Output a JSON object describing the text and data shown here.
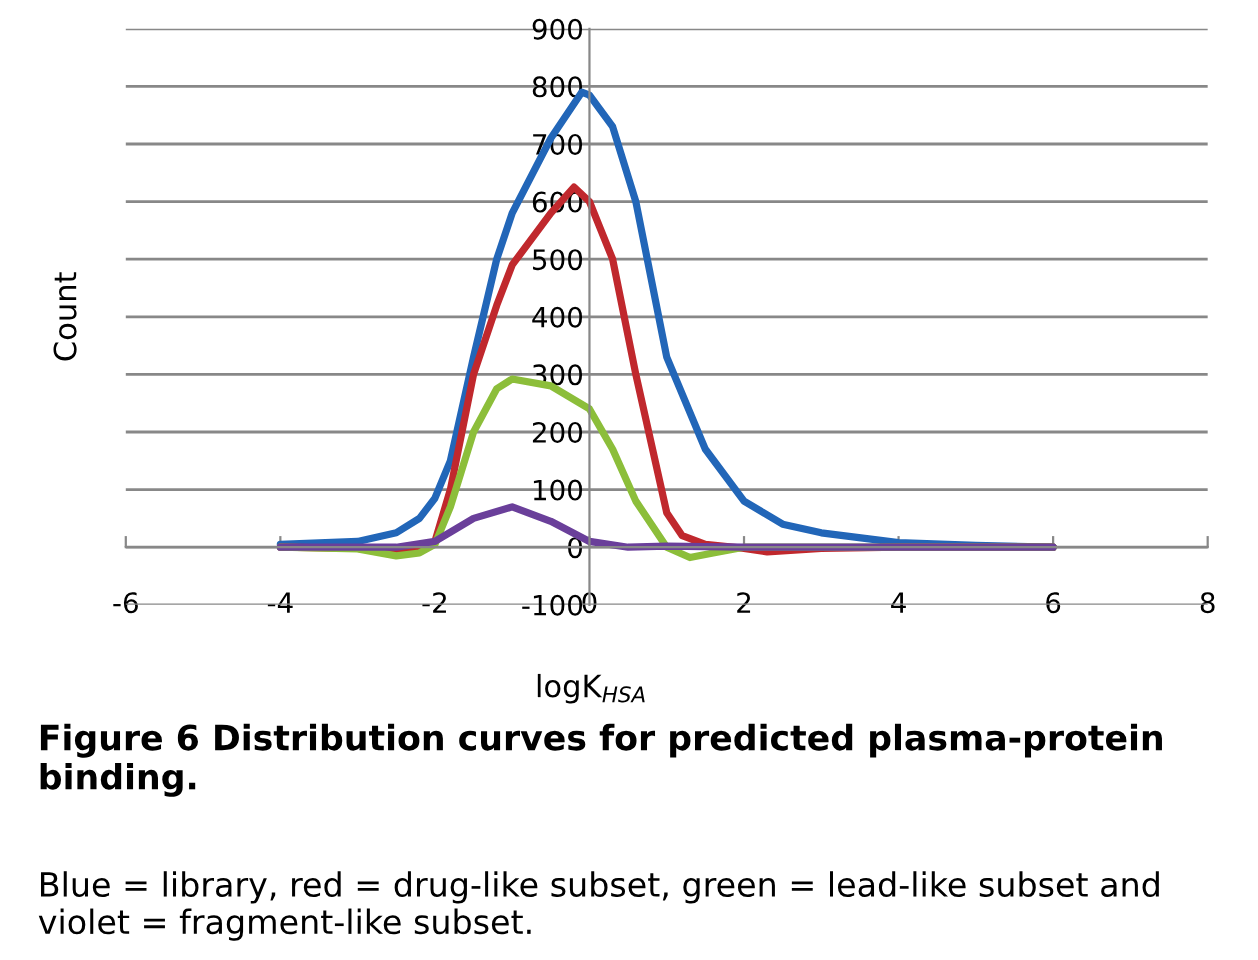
{
  "chart_data": {
    "type": "line",
    "xlabel": "logK$_{HSA}$",
    "ylabel": "Count",
    "annotations": [
      "Figure 6 Distribution curves for predicted plasma-protein binding.",
      "Blue = library, red = drug-like subset, green = lead-like subset and violet = fragment-like subset."
    ],
    "xlim": [
      -6,
      8
    ],
    "xticks": [
      -6,
      -4,
      -2,
      0,
      2,
      4,
      6,
      8
    ],
    "ylim": [
      -100,
      900
    ],
    "yticks": [
      -100,
      0,
      100,
      200,
      300,
      400,
      500,
      600,
      700,
      800,
      900
    ],
    "grid": "y",
    "marker": "none",
    "line_style": "solid",
    "series": [
      {
        "color": "#2266b8",
        "x": [
          -4,
          -3,
          -2.5,
          -2.2,
          -2,
          -1.8,
          -1.5,
          -1.2,
          -1,
          -0.5,
          -0.1,
          0,
          0.3,
          0.6,
          1,
          1.5,
          2,
          2.5,
          3,
          4,
          5,
          6
        ],
        "values": [
          5,
          10,
          25,
          50,
          85,
          150,
          330,
          500,
          580,
          710,
          790,
          785,
          730,
          600,
          330,
          170,
          80,
          40,
          25,
          8,
          3,
          0
        ]
      },
      {
        "color": "#c0282d",
        "x": [
          -4,
          -3,
          -2.5,
          -2.2,
          -2,
          -1.8,
          -1.5,
          -1.2,
          -1,
          -0.5,
          -0.2,
          0,
          0.3,
          0.6,
          0.8,
          1,
          1.2,
          1.5,
          2,
          2.3,
          3,
          4,
          6
        ],
        "values": [
          0,
          -2,
          -10,
          -5,
          10,
          100,
          300,
          420,
          490,
          580,
          625,
          600,
          500,
          300,
          180,
          60,
          20,
          5,
          -2,
          -8,
          -2,
          0,
          0
        ]
      },
      {
        "color": "#8cbe3a",
        "x": [
          -4,
          -3,
          -2.5,
          -2.2,
          -2,
          -1.8,
          -1.5,
          -1.2,
          -1,
          -0.5,
          0,
          0.3,
          0.6,
          1,
          1.3,
          1.6,
          2,
          6
        ],
        "values": [
          0,
          -3,
          -15,
          -10,
          5,
          70,
          200,
          275,
          292,
          280,
          240,
          170,
          80,
          0,
          -18,
          -10,
          0,
          0
        ]
      },
      {
        "color": "#6a3f9a",
        "x": [
          -4,
          -2.5,
          -2,
          -1.5,
          -1,
          -0.5,
          0,
          0.5,
          1,
          2,
          6
        ],
        "values": [
          0,
          0,
          10,
          50,
          70,
          45,
          10,
          0,
          2,
          0,
          0
        ]
      }
    ]
  }
}
